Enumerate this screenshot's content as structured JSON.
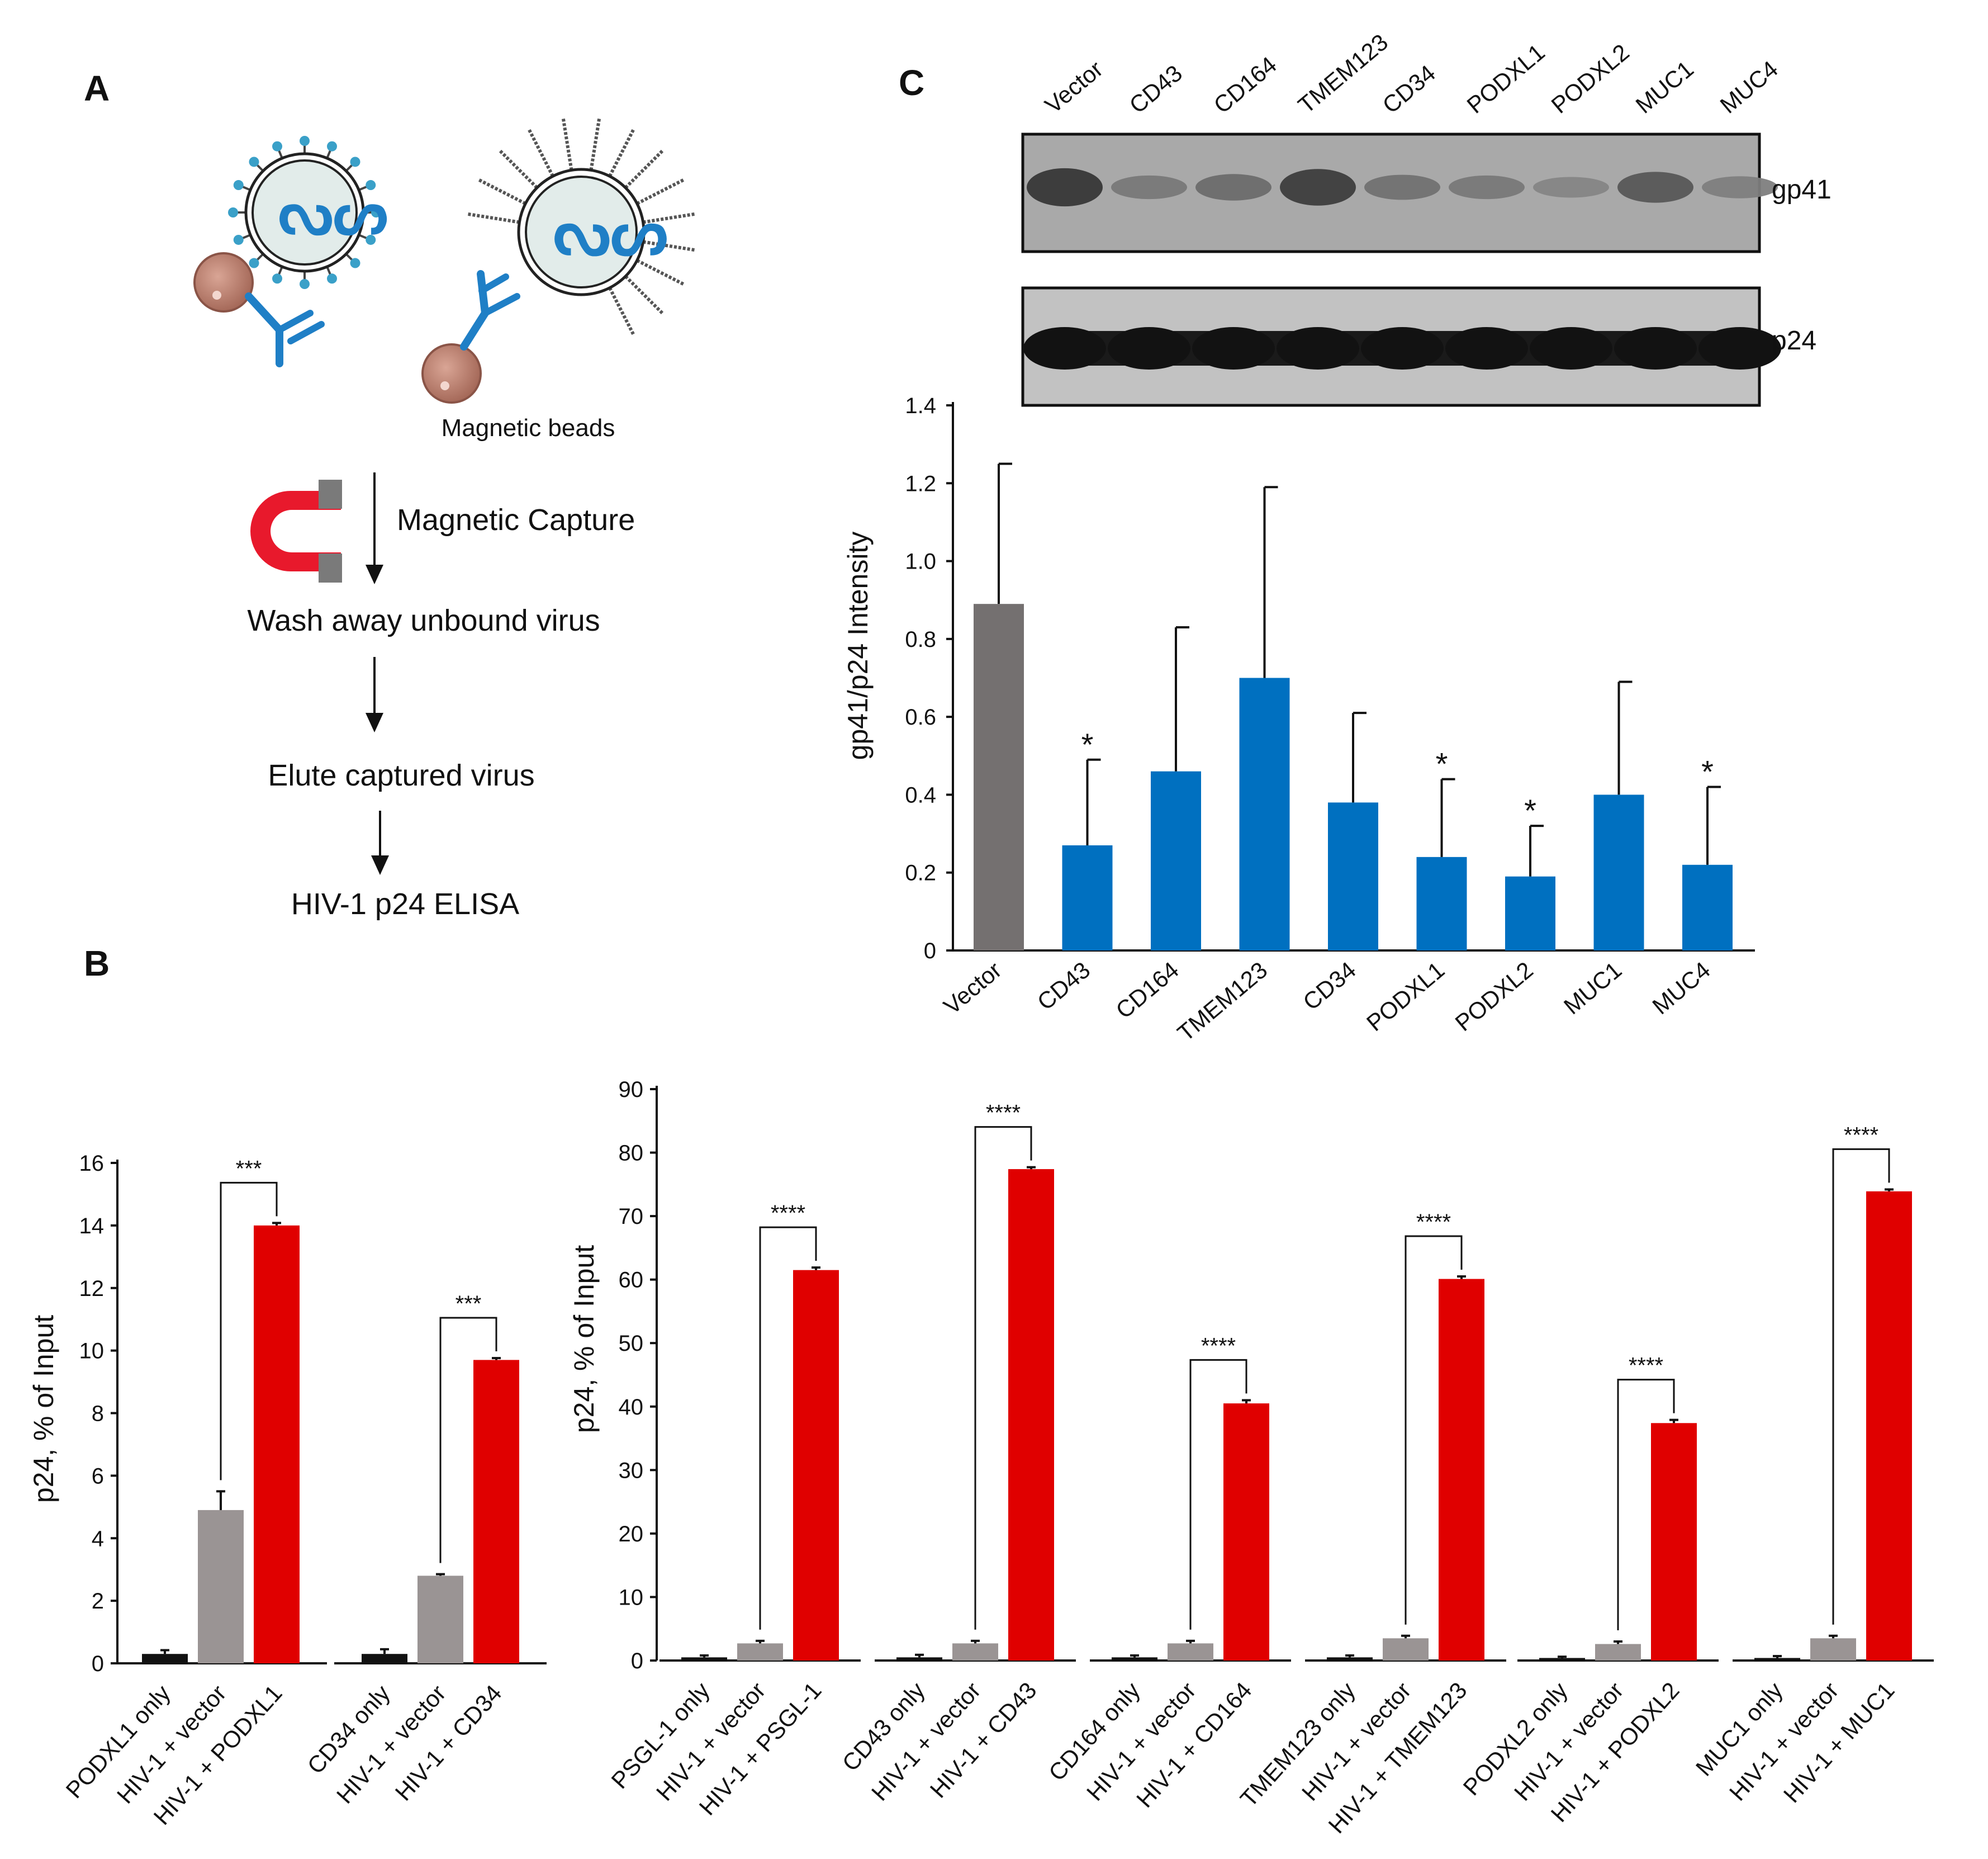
{
  "panel_labels": {
    "a": "A",
    "b": "B",
    "c": "C"
  },
  "workflow": {
    "beads_label": "Magnetic beads",
    "capture_label": "Magnetic Capture",
    "wash_label": "Wash away unbound virus",
    "elute_label": "Elute captured virus",
    "elisa_label": "HIV-1 p24 ELISA"
  },
  "blot": {
    "lanes": [
      "Vector",
      "CD43",
      "CD164",
      "TMEM123",
      "CD34",
      "PODXL1",
      "PODXL2",
      "MUC1",
      "MUC4"
    ],
    "gp41_label": "gp41",
    "p24_label": "p24",
    "gp41_intensity": [
      0.85,
      0.35,
      0.45,
      0.8,
      0.4,
      0.35,
      0.25,
      0.6,
      0.3
    ]
  },
  "colors": {
    "vector": "#747070",
    "blue": "#0070c0",
    "red": "#e00000",
    "gray": "#9a9494",
    "black": "#111111"
  },
  "chart_data": [
    {
      "id": "C",
      "type": "bar",
      "title": "",
      "xlabel": "",
      "ylabel": "gp41/p24 Intensity",
      "ylim": [
        0,
        1.4
      ],
      "yticks": [
        "0",
        "0.2",
        "0.4",
        "0.6",
        "0.8",
        "1.0",
        "1.2",
        "1.4"
      ],
      "categories": [
        "Vector",
        "CD43",
        "CD164",
        "TMEM123",
        "CD34",
        "PODXL1",
        "PODXL2",
        "MUC1",
        "MUC4"
      ],
      "values": [
        0.89,
        0.27,
        0.46,
        0.7,
        0.38,
        0.24,
        0.19,
        0.4,
        0.22
      ],
      "errors": [
        0.36,
        0.22,
        0.37,
        0.49,
        0.23,
        0.2,
        0.13,
        0.29,
        0.2
      ],
      "significance": [
        "",
        "*",
        "",
        "",
        "",
        "*",
        "*",
        "",
        "*"
      ]
    },
    {
      "id": "B-left",
      "type": "bar",
      "ylabel": "p24, % of Input",
      "ylim": [
        0,
        16
      ],
      "yticks": [
        "0",
        "2",
        "4",
        "6",
        "8",
        "10",
        "12",
        "14",
        "16"
      ],
      "groups": [
        {
          "categories": [
            "PODXL1 only",
            "HIV-1 + vector",
            "HIV-1 + PODXL1"
          ],
          "values": [
            0.3,
            4.9,
            14.0
          ],
          "errors": [
            0.12,
            0.6,
            0.08
          ],
          "significance": "***"
        },
        {
          "categories": [
            "CD34 only",
            "HIV-1 + vector",
            "HIV-1 + CD34"
          ],
          "values": [
            0.3,
            2.8,
            9.7
          ],
          "errors": [
            0.15,
            0.05,
            0.06
          ],
          "significance": "***"
        }
      ]
    },
    {
      "id": "B-right",
      "type": "bar",
      "ylabel": "p24, % of Input",
      "ylim": [
        0,
        90
      ],
      "yticks": [
        "0",
        "10",
        "20",
        "30",
        "40",
        "50",
        "60",
        "70",
        "80",
        "90"
      ],
      "groups": [
        {
          "categories": [
            "PSGL-1 only",
            "HIV-1 + vector",
            "HIV-1 + PSGL-1"
          ],
          "values": [
            0.5,
            2.7,
            61.5
          ],
          "errors": [
            0.3,
            0.4,
            0.4
          ],
          "significance": "****"
        },
        {
          "categories": [
            "CD43 only",
            "HIV-1 + vector",
            "HIV-1 + CD43"
          ],
          "values": [
            0.5,
            2.7,
            77.4
          ],
          "errors": [
            0.4,
            0.4,
            0.3
          ],
          "significance": "****"
        },
        {
          "categories": [
            "CD164 only",
            "HIV-1 + vector",
            "HIV-1 + CD164"
          ],
          "values": [
            0.5,
            2.7,
            40.5
          ],
          "errors": [
            0.3,
            0.4,
            0.5
          ],
          "significance": "****"
        },
        {
          "categories": [
            "TMEM123 only",
            "HIV-1 + vector",
            "HIV-1 + TMEM123"
          ],
          "values": [
            0.5,
            3.5,
            60.1
          ],
          "errors": [
            0.3,
            0.4,
            0.4
          ],
          "significance": "****"
        },
        {
          "categories": [
            "PODXL2 only",
            "HIV-1 + vector",
            "HIV-1 + PODXL2"
          ],
          "values": [
            0.4,
            2.6,
            37.4
          ],
          "errors": [
            0.2,
            0.4,
            0.5
          ],
          "significance": "****"
        },
        {
          "categories": [
            "MUC1 only",
            "HIV-1 + vector",
            "HIV-1 + MUC1"
          ],
          "values": [
            0.4,
            3.5,
            73.9
          ],
          "errors": [
            0.3,
            0.4,
            0.3
          ],
          "significance": "****"
        }
      ]
    }
  ]
}
